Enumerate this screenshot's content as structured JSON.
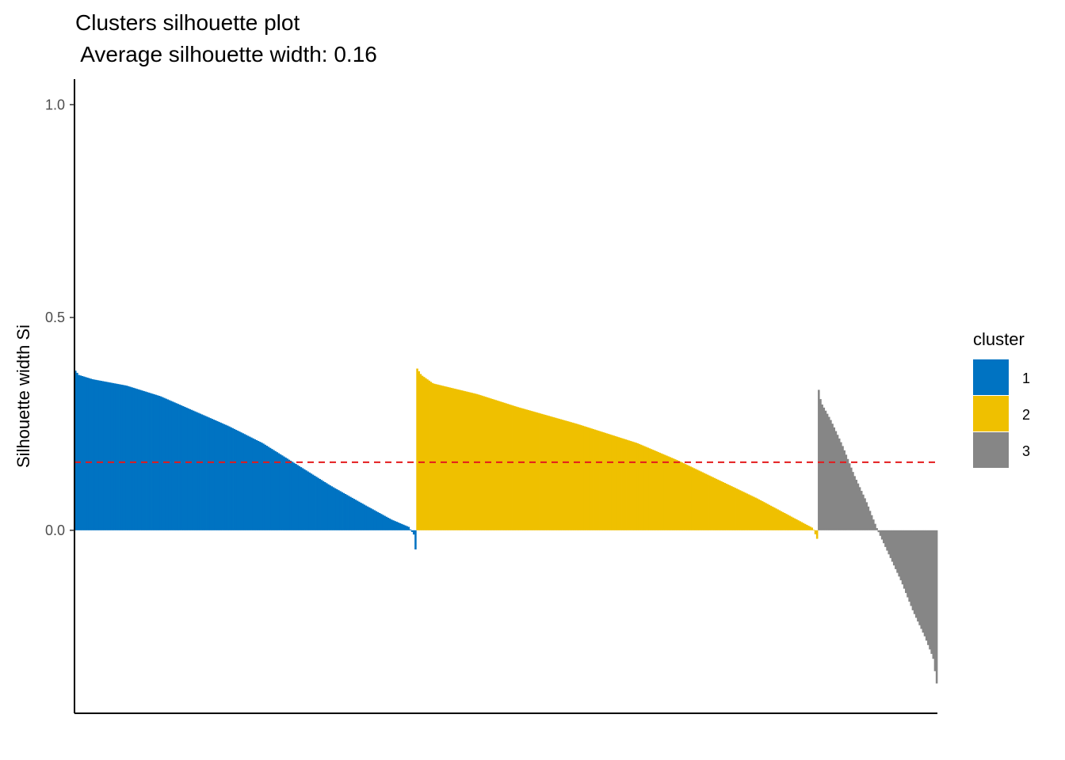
{
  "chart_data": {
    "type": "bar",
    "title": "Clusters silhouette plot",
    "subtitle": " Average silhouette width: 0.16",
    "xlabel": "",
    "ylabel": "Silhouette width Si",
    "ylim": [
      -0.43,
      1.06
    ],
    "y_ticks": [
      "0.0",
      "0.5",
      "1.0"
    ],
    "y_tick_values": [
      0.0,
      0.5,
      1.0
    ],
    "average_silhouette": 0.16,
    "average_line_color": "#E41A1C",
    "grid": false,
    "legend": {
      "title": "cluster",
      "position": "right",
      "entries": [
        {
          "label": "1",
          "color": "#0073C2"
        },
        {
          "label": "2",
          "color": "#EFC000"
        },
        {
          "label": "3",
          "color": "#868686"
        }
      ]
    },
    "series": [
      {
        "name": "1",
        "color": "#0073C2",
        "n": 200,
        "profile": [
          [
            0,
            0.375
          ],
          [
            0.01,
            0.365
          ],
          [
            0.05,
            0.355
          ],
          [
            0.15,
            0.34
          ],
          [
            0.25,
            0.315
          ],
          [
            0.35,
            0.28
          ],
          [
            0.45,
            0.245
          ],
          [
            0.55,
            0.205
          ],
          [
            0.65,
            0.155
          ],
          [
            0.75,
            0.105
          ],
          [
            0.85,
            0.06
          ],
          [
            0.93,
            0.025
          ],
          [
            0.98,
            0.008
          ],
          [
            0.995,
            -0.01
          ],
          [
            1,
            -0.045
          ]
        ]
      },
      {
        "name": "2",
        "color": "#EFC000",
        "n": 235,
        "profile": [
          [
            0,
            0.38
          ],
          [
            0.01,
            0.365
          ],
          [
            0.04,
            0.345
          ],
          [
            0.15,
            0.32
          ],
          [
            0.25,
            0.29
          ],
          [
            0.4,
            0.25
          ],
          [
            0.55,
            0.205
          ],
          [
            0.65,
            0.165
          ],
          [
            0.75,
            0.12
          ],
          [
            0.85,
            0.075
          ],
          [
            0.95,
            0.025
          ],
          [
            0.99,
            0.005
          ],
          [
            1,
            -0.02
          ]
        ]
      },
      {
        "name": "3",
        "color": "#868686",
        "n": 70,
        "profile": [
          [
            0,
            0.33
          ],
          [
            0.02,
            0.3
          ],
          [
            0.1,
            0.26
          ],
          [
            0.2,
            0.2
          ],
          [
            0.3,
            0.13
          ],
          [
            0.4,
            0.07
          ],
          [
            0.5,
            0.0
          ],
          [
            0.6,
            -0.06
          ],
          [
            0.7,
            -0.12
          ],
          [
            0.8,
            -0.19
          ],
          [
            0.9,
            -0.25
          ],
          [
            0.97,
            -0.3
          ],
          [
            1,
            -0.36
          ]
        ]
      }
    ]
  }
}
